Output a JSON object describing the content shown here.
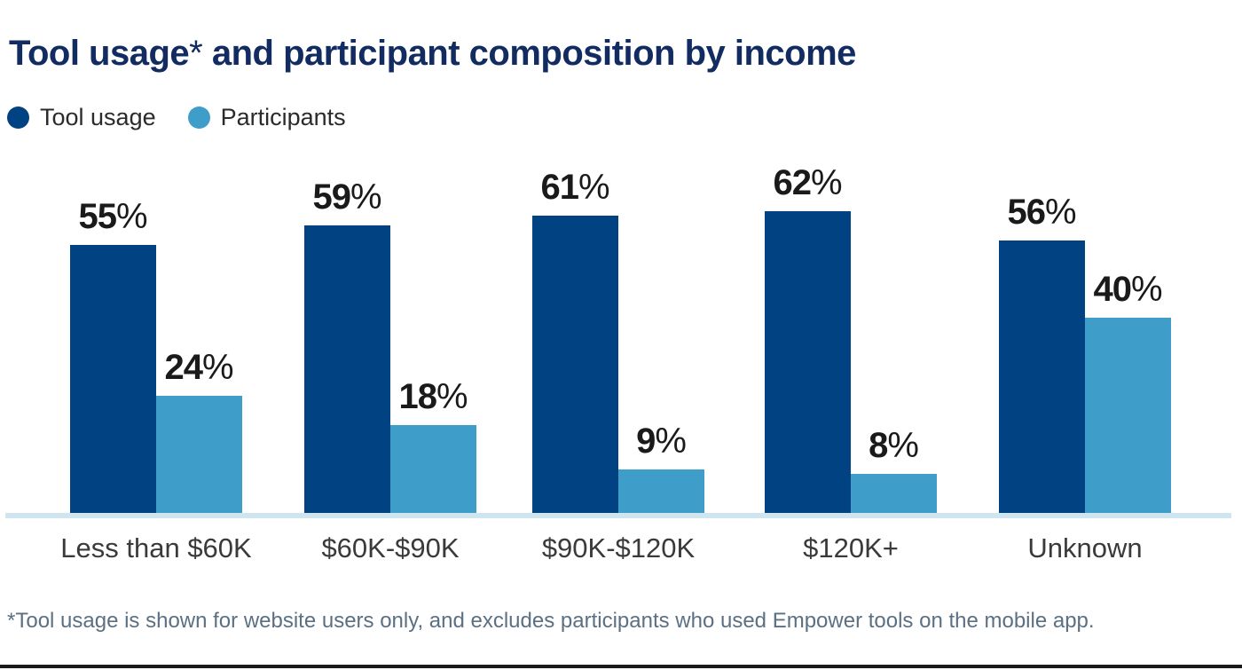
{
  "title": {
    "text_before_asterisk": "Tool usage",
    "asterisk": "*",
    "text_after_asterisk": " and participant composition by income"
  },
  "legend": {
    "items": [
      {
        "label": "Tool usage",
        "color": "#004282"
      },
      {
        "label": "Participants",
        "color": "#3F9DC9"
      }
    ]
  },
  "chart_data": {
    "type": "bar",
    "title": "Tool usage* and participant composition by income",
    "categories": [
      "Less than $60K",
      "$60K-$90K",
      "$90K-$120K",
      "$120K+",
      "Unknown"
    ],
    "series": [
      {
        "name": "Tool usage",
        "color": "#004282",
        "values": [
          55,
          59,
          61,
          62,
          56
        ]
      },
      {
        "name": "Participants",
        "color": "#3F9DC9",
        "values": [
          24,
          18,
          9,
          8,
          40
        ]
      }
    ],
    "value_suffix": "%",
    "xlabel": "",
    "ylabel": "",
    "ylim": [
      0,
      70
    ],
    "grid": false,
    "legend_position": "top-left",
    "value_labels_shown": true
  },
  "footnote": "*Tool usage is shown for website users only, and excludes participants who used Empower tools on the mobile app.",
  "colors": {
    "title": "#122C61",
    "bar_dark": "#004282",
    "bar_light": "#3F9DC9",
    "baseline": "#CFE5F0",
    "value_label": "#1A1A1A",
    "category_label": "#3A3A3A",
    "footnote": "#5B7083",
    "bottom_rule": "#1A1A1A"
  }
}
